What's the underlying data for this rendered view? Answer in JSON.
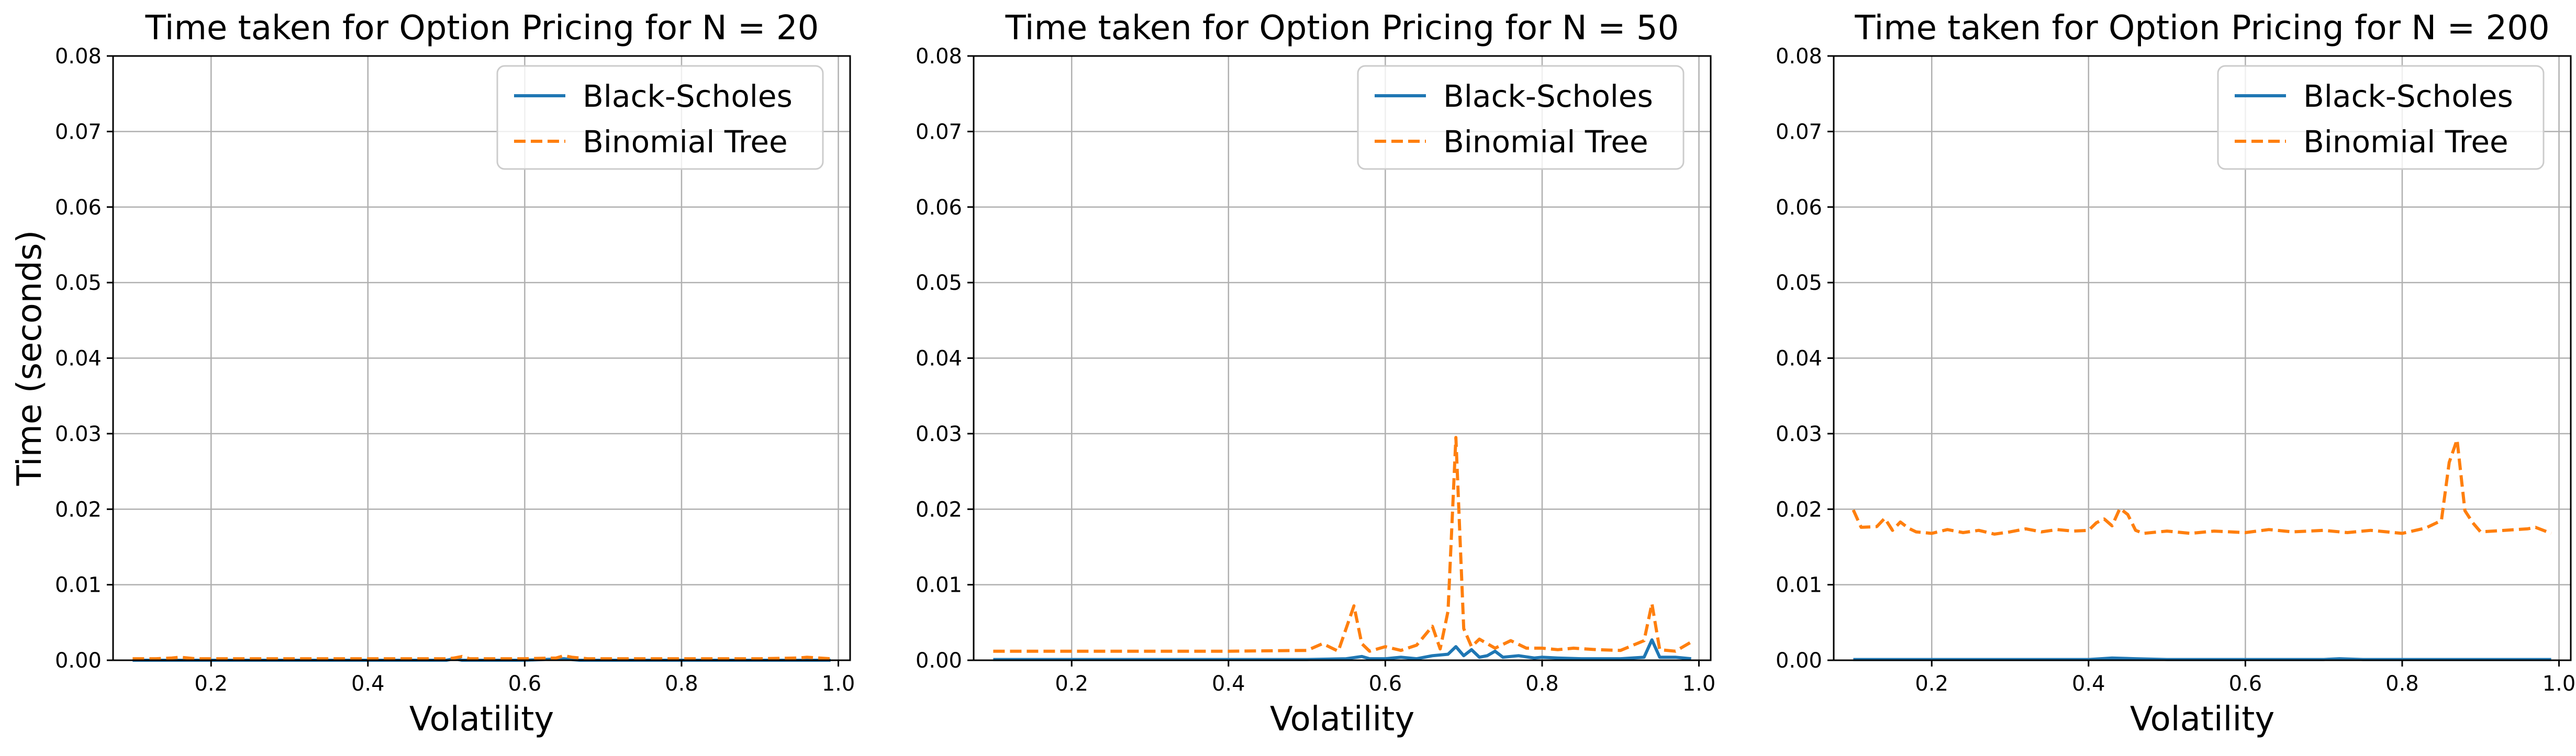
{
  "chart_data": [
    {
      "type": "line",
      "title": "Time taken for Option Pricing for N = 20",
      "xlabel": "Volatility",
      "ylabel": "Time (seconds)",
      "xlim": [
        0.075,
        1.015
      ],
      "ylim": [
        0,
        0.08
      ],
      "xticks": [
        "0.2",
        "0.4",
        "0.6",
        "0.8",
        "1.0"
      ],
      "yticks": [
        "0.00",
        "0.01",
        "0.02",
        "0.03",
        "0.04",
        "0.05",
        "0.06",
        "0.07",
        "0.08"
      ],
      "grid": true,
      "legend_position": "upper right",
      "series": [
        {
          "name": "Black-Scholes",
          "color": "#1f77b4",
          "dash": "solid",
          "x": [
            0.1,
            0.15,
            0.2,
            0.25,
            0.3,
            0.35,
            0.4,
            0.45,
            0.5,
            0.51,
            0.52,
            0.53,
            0.55,
            0.6,
            0.65,
            0.66,
            0.67,
            0.7,
            0.75,
            0.8,
            0.85,
            0.9,
            0.95,
            0.99
          ],
          "y": [
            0,
            0,
            0,
            0,
            0,
            0,
            0,
            0,
            0,
            0.0002,
            0,
            0,
            0,
            0,
            0.0002,
            0.0001,
            0,
            0,
            0,
            0,
            0,
            0,
            0,
            0
          ]
        },
        {
          "name": "Binomial Tree",
          "color": "#ff7f0e",
          "dash": "dashed",
          "x": [
            0.1,
            0.13,
            0.15,
            0.16,
            0.18,
            0.2,
            0.24,
            0.28,
            0.3,
            0.35,
            0.4,
            0.45,
            0.5,
            0.51,
            0.52,
            0.53,
            0.55,
            0.6,
            0.64,
            0.65,
            0.66,
            0.68,
            0.7,
            0.75,
            0.8,
            0.85,
            0.9,
            0.95,
            0.96,
            0.99
          ],
          "y": [
            0.0002,
            0.0002,
            0.0003,
            0.0004,
            0.0002,
            0.0002,
            0.0002,
            0.0002,
            0.0002,
            0.0002,
            0.0002,
            0.0002,
            0.0002,
            0.0003,
            0.0005,
            0.0002,
            0.0002,
            0.0002,
            0.0003,
            0.0006,
            0.0004,
            0.0002,
            0.0002,
            0.0002,
            0.0002,
            0.0002,
            0.0002,
            0.0003,
            0.0004,
            0.0002
          ]
        }
      ]
    },
    {
      "type": "line",
      "title": "Time taken for Option Pricing for N = 50",
      "xlabel": "Volatility",
      "ylabel": "",
      "xlim": [
        0.075,
        1.015
      ],
      "ylim": [
        0,
        0.08
      ],
      "xticks": [
        "0.2",
        "0.4",
        "0.6",
        "0.8",
        "1.0"
      ],
      "yticks": [
        "0.00",
        "0.01",
        "0.02",
        "0.03",
        "0.04",
        "0.05",
        "0.06",
        "0.07",
        "0.08"
      ],
      "grid": true,
      "legend_position": "upper right",
      "series": [
        {
          "name": "Black-Scholes",
          "color": "#1f77b4",
          "dash": "solid",
          "x": [
            0.1,
            0.2,
            0.3,
            0.4,
            0.5,
            0.55,
            0.57,
            0.58,
            0.6,
            0.62,
            0.64,
            0.66,
            0.68,
            0.69,
            0.7,
            0.71,
            0.72,
            0.73,
            0.74,
            0.75,
            0.77,
            0.79,
            0.8,
            0.82,
            0.85,
            0.88,
            0.9,
            0.93,
            0.94,
            0.95,
            0.97,
            0.99
          ],
          "y": [
            0.0001,
            0.0001,
            0.0001,
            0.0001,
            0.0001,
            0.0002,
            0.0005,
            0.0002,
            0.0002,
            0.0004,
            0.0002,
            0.0006,
            0.0008,
            0.0018,
            0.0006,
            0.0014,
            0.0004,
            0.0006,
            0.0012,
            0.0004,
            0.0006,
            0.0003,
            0.0004,
            0.0003,
            0.0002,
            0.0002,
            0.0002,
            0.0004,
            0.0027,
            0.0004,
            0.0004,
            0.0002
          ]
        },
        {
          "name": "Binomial Tree",
          "color": "#ff7f0e",
          "dash": "dashed",
          "x": [
            0.1,
            0.2,
            0.3,
            0.4,
            0.5,
            0.52,
            0.54,
            0.56,
            0.57,
            0.58,
            0.6,
            0.62,
            0.64,
            0.66,
            0.67,
            0.68,
            0.69,
            0.7,
            0.71,
            0.72,
            0.74,
            0.76,
            0.78,
            0.8,
            0.82,
            0.84,
            0.87,
            0.9,
            0.93,
            0.94,
            0.95,
            0.97,
            0.99
          ],
          "y": [
            0.0012,
            0.0012,
            0.0012,
            0.0012,
            0.0013,
            0.0022,
            0.0012,
            0.0072,
            0.0022,
            0.0012,
            0.0018,
            0.0013,
            0.002,
            0.0045,
            0.0015,
            0.0065,
            0.0295,
            0.0042,
            0.0018,
            0.0028,
            0.0016,
            0.0026,
            0.0016,
            0.0016,
            0.0014,
            0.0016,
            0.0014,
            0.0013,
            0.0026,
            0.0075,
            0.0014,
            0.0012,
            0.0024
          ]
        }
      ]
    },
    {
      "type": "line",
      "title": "Time taken for Option Pricing for N = 200",
      "xlabel": "Volatility",
      "ylabel": "",
      "xlim": [
        0.075,
        1.015
      ],
      "ylim": [
        0,
        0.08
      ],
      "xticks": [
        "0.2",
        "0.4",
        "0.6",
        "0.8",
        "1.0"
      ],
      "yticks": [
        "0.00",
        "0.01",
        "0.02",
        "0.03",
        "0.04",
        "0.05",
        "0.06",
        "0.07",
        "0.08"
      ],
      "grid": true,
      "legend_position": "upper right",
      "series": [
        {
          "name": "Black-Scholes",
          "color": "#1f77b4",
          "dash": "solid",
          "x": [
            0.1,
            0.2,
            0.3,
            0.4,
            0.43,
            0.46,
            0.5,
            0.6,
            0.7,
            0.72,
            0.75,
            0.8,
            0.9,
            0.99
          ],
          "y": [
            0.0001,
            0.0001,
            0.0001,
            0.0001,
            0.0003,
            0.0002,
            0.0001,
            0.0001,
            0.0001,
            0.0002,
            0.0001,
            0.0001,
            0.0001,
            0.0001
          ]
        },
        {
          "name": "Binomial Tree",
          "color": "#ff7f0e",
          "dash": "dashed",
          "x": [
            0.1,
            0.11,
            0.13,
            0.14,
            0.15,
            0.16,
            0.17,
            0.18,
            0.2,
            0.22,
            0.24,
            0.26,
            0.28,
            0.3,
            0.32,
            0.34,
            0.36,
            0.38,
            0.4,
            0.41,
            0.42,
            0.43,
            0.44,
            0.45,
            0.46,
            0.47,
            0.5,
            0.53,
            0.56,
            0.6,
            0.63,
            0.66,
            0.7,
            0.73,
            0.76,
            0.8,
            0.83,
            0.85,
            0.86,
            0.87,
            0.88,
            0.89,
            0.9,
            0.93,
            0.96,
            0.97,
            0.99
          ],
          "y": [
            0.0199,
            0.0176,
            0.0177,
            0.0188,
            0.0172,
            0.0183,
            0.0175,
            0.017,
            0.0168,
            0.0173,
            0.0169,
            0.0172,
            0.0167,
            0.017,
            0.0174,
            0.017,
            0.0173,
            0.0171,
            0.0172,
            0.0182,
            0.0187,
            0.0178,
            0.0201,
            0.0193,
            0.0172,
            0.0168,
            0.0171,
            0.0168,
            0.0171,
            0.0169,
            0.0173,
            0.017,
            0.0172,
            0.0169,
            0.0172,
            0.0168,
            0.0175,
            0.0185,
            0.0262,
            0.0292,
            0.0198,
            0.0182,
            0.017,
            0.0172,
            0.0174,
            0.0176,
            0.0168
          ]
        }
      ]
    }
  ]
}
